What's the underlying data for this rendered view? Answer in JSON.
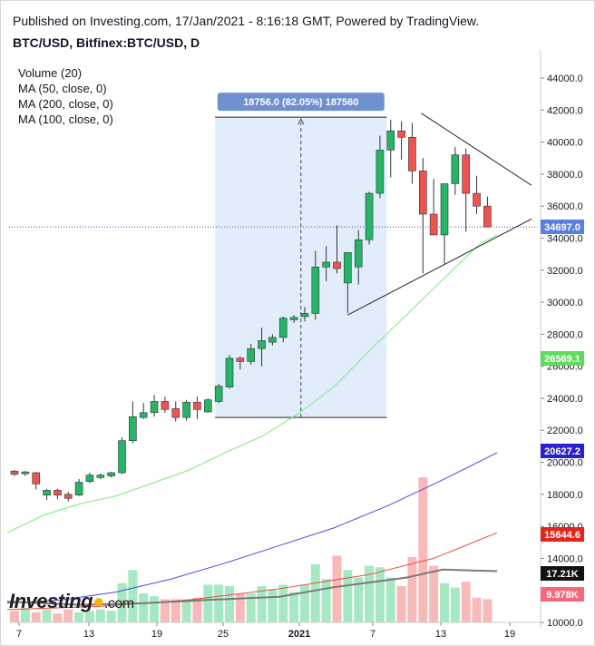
{
  "header": {
    "published": "Published on Investing.com, 17/Jan/2021 - 8:16:18 GMT, Powered by TradingView.",
    "symbol": "BTC/USD, Bitfinex:BTC/USD, D"
  },
  "legend": [
    "Volume (20)",
    "MA (50, close, 0)",
    "MA (200, close, 0)",
    "MA (100, close, 0)"
  ],
  "logo": {
    "name": "Investing",
    "suffix": ".com"
  },
  "chart_data": {
    "type": "candlestick",
    "y_axis": {
      "ticks": [
        "44000.0",
        "42000.0",
        "40000.0",
        "38000.0",
        "36000.0",
        "34000.0",
        "32000.0",
        "30000.0",
        "28000.0",
        "26000.0",
        "24000.0",
        "22000.0",
        "20000.0",
        "18000.0",
        "16000.0",
        "14000.0",
        "12000.0",
        "10000.0"
      ],
      "range": [
        9500,
        45500
      ]
    },
    "x_axis": {
      "ticks": [
        "7",
        "13",
        "19",
        "25",
        "2021",
        "7",
        "13",
        "19"
      ]
    },
    "candles": [
      {
        "o": 19450,
        "h": 19520,
        "l": 19150,
        "c": 19250
      },
      {
        "o": 19300,
        "h": 19450,
        "l": 19150,
        "c": 19400
      },
      {
        "o": 19350,
        "h": 19400,
        "l": 18300,
        "c": 18650
      },
      {
        "o": 17950,
        "h": 18350,
        "l": 17650,
        "c": 18250
      },
      {
        "o": 18250,
        "h": 18350,
        "l": 17700,
        "c": 17950
      },
      {
        "o": 18000,
        "h": 18150,
        "l": 17550,
        "c": 17750
      },
      {
        "o": 17950,
        "h": 18950,
        "l": 17900,
        "c": 18750
      },
      {
        "o": 18800,
        "h": 19350,
        "l": 18700,
        "c": 19200
      },
      {
        "o": 19050,
        "h": 19300,
        "l": 18950,
        "c": 19200
      },
      {
        "o": 19150,
        "h": 19400,
        "l": 19050,
        "c": 19350
      },
      {
        "o": 19350,
        "h": 21550,
        "l": 19250,
        "c": 21350
      },
      {
        "o": 21350,
        "h": 23800,
        "l": 21200,
        "c": 22850
      },
      {
        "o": 22800,
        "h": 23700,
        "l": 22700,
        "c": 23100
      },
      {
        "o": 23100,
        "h": 24200,
        "l": 22850,
        "c": 23800
      },
      {
        "o": 23800,
        "h": 24100,
        "l": 23100,
        "c": 23300
      },
      {
        "o": 23350,
        "h": 23800,
        "l": 22550,
        "c": 22800
      },
      {
        "o": 22800,
        "h": 23900,
        "l": 22600,
        "c": 23750
      },
      {
        "o": 23750,
        "h": 24100,
        "l": 22700,
        "c": 23300
      },
      {
        "o": 23150,
        "h": 24000,
        "l": 23100,
        "c": 23900
      },
      {
        "o": 23800,
        "h": 24900,
        "l": 23700,
        "c": 24750
      },
      {
        "o": 24700,
        "h": 26700,
        "l": 24600,
        "c": 26500
      },
      {
        "o": 26500,
        "h": 26600,
        "l": 25800,
        "c": 26300
      },
      {
        "o": 26300,
        "h": 27400,
        "l": 26100,
        "c": 27100
      },
      {
        "o": 27100,
        "h": 28400,
        "l": 26000,
        "c": 27600
      },
      {
        "o": 27500,
        "h": 28000,
        "l": 27300,
        "c": 27800
      },
      {
        "o": 27800,
        "h": 29100,
        "l": 27500,
        "c": 29000
      },
      {
        "o": 28900,
        "h": 29200,
        "l": 28700,
        "c": 29050
      },
      {
        "o": 29100,
        "h": 29700,
        "l": 28800,
        "c": 29300
      },
      {
        "o": 29300,
        "h": 33200,
        "l": 28900,
        "c": 32200
      },
      {
        "o": 32200,
        "h": 33500,
        "l": 31300,
        "c": 32500
      },
      {
        "o": 32500,
        "h": 34800,
        "l": 31800,
        "c": 32100
      },
      {
        "o": 31200,
        "h": 33100,
        "l": 29300,
        "c": 33100
      },
      {
        "o": 32200,
        "h": 34500,
        "l": 31100,
        "c": 33900
      },
      {
        "o": 33900,
        "h": 36900,
        "l": 33600,
        "c": 36800
      },
      {
        "o": 36800,
        "h": 40400,
        "l": 36500,
        "c": 39500
      },
      {
        "o": 39500,
        "h": 41400,
        "l": 37800,
        "c": 40700
      },
      {
        "o": 40700,
        "h": 41300,
        "l": 38900,
        "c": 40300
      },
      {
        "o": 40300,
        "h": 41200,
        "l": 37400,
        "c": 38200
      },
      {
        "o": 38200,
        "h": 39000,
        "l": 31800,
        "c": 35500
      },
      {
        "o": 35500,
        "h": 37700,
        "l": 34500,
        "c": 34200
      },
      {
        "o": 34200,
        "h": 37300,
        "l": 32400,
        "c": 37400
      },
      {
        "o": 37400,
        "h": 39700,
        "l": 36700,
        "c": 39200
      },
      {
        "o": 39200,
        "h": 39600,
        "l": 34400,
        "c": 36800
      },
      {
        "o": 36800,
        "h": 37900,
        "l": 35500,
        "c": 36000
      },
      {
        "o": 36000,
        "h": 36600,
        "l": 34700,
        "c": 34700
      }
    ],
    "ma50": [
      [
        0,
        15600
      ],
      [
        40,
        16700
      ],
      [
        80,
        17400
      ],
      [
        120,
        17900
      ],
      [
        160,
        18700
      ],
      [
        200,
        19500
      ],
      [
        240,
        20600
      ],
      [
        280,
        21600
      ],
      [
        320,
        23000
      ],
      [
        360,
        24700
      ],
      [
        400,
        27000
      ],
      [
        440,
        29200
      ],
      [
        480,
        31400
      ],
      [
        520,
        33600
      ],
      [
        540,
        34200
      ]
    ],
    "ma100": [
      [
        0,
        11200
      ],
      [
        60,
        11400
      ],
      [
        120,
        11900
      ],
      [
        180,
        12700
      ],
      [
        240,
        13700
      ],
      [
        300,
        14800
      ],
      [
        360,
        15900
      ],
      [
        420,
        17300
      ],
      [
        480,
        18900
      ],
      [
        540,
        20600
      ]
    ],
    "ma200": [
      [
        0,
        10800
      ],
      [
        100,
        11000
      ],
      [
        200,
        11400
      ],
      [
        300,
        12100
      ],
      [
        400,
        13000
      ],
      [
        470,
        14000
      ],
      [
        540,
        15600
      ]
    ],
    "volume_ma": [
      [
        0,
        11300
      ],
      [
        80,
        11100
      ],
      [
        150,
        11200
      ],
      [
        220,
        11400
      ],
      [
        300,
        11600
      ],
      [
        360,
        12200
      ],
      [
        400,
        12500
      ],
      [
        440,
        12800
      ],
      [
        480,
        13300
      ],
      [
        540,
        13200
      ]
    ],
    "volume_relative": [
      0.08,
      0.1,
      0.07,
      0.09,
      0.06,
      0.09,
      0.07,
      0.08,
      0.09,
      0.08,
      0.27,
      0.36,
      0.2,
      0.18,
      0.16,
      0.16,
      0.16,
      0.17,
      0.26,
      0.26,
      0.25,
      0.2,
      0.2,
      0.25,
      0.23,
      0.26,
      0.21,
      0.26,
      0.4,
      0.3,
      0.46,
      0.36,
      0.31,
      0.39,
      0.38,
      0.31,
      0.25,
      0.45,
      1.0,
      0.39,
      0.27,
      0.24,
      0.28,
      0.17,
      0.16
    ],
    "measure_label": "18756.0 (82.05%) 187560",
    "measure": {
      "from": 22800,
      "to": 41556
    },
    "triangle": {
      "upper": [
        [
          37,
          41800
        ],
        [
          45,
          37300
        ]
      ],
      "lower": [
        [
          31,
          29200
        ],
        [
          45,
          35200
        ]
      ]
    },
    "last_price": 34697.0,
    "ma_tags": [
      {
        "label": "34697.0",
        "value": 34697,
        "color": "#5b7fe0"
      },
      {
        "label": "26569.1",
        "value": 26569,
        "color": "#5fdc5f"
      },
      {
        "label": "20627.2",
        "value": 20627,
        "color": "#2a22c9"
      },
      {
        "label": "15644.6",
        "value": 15644,
        "color": "#e3261c"
      },
      {
        "label": "17.21K",
        "value": 12000,
        "color": "#111111"
      },
      {
        "label": "9.978K",
        "value": 10700,
        "color": "#f6697b"
      }
    ],
    "colors": {
      "up": "#26b467",
      "down": "#ef5350",
      "ma50": "#77ee77",
      "ma100": "#4a4ae0",
      "ma200": "#e84a3a",
      "vol_up": "#a6e8c4",
      "vol_down": "#f8b9b9",
      "vol_ma": "#7a7a7a"
    }
  }
}
